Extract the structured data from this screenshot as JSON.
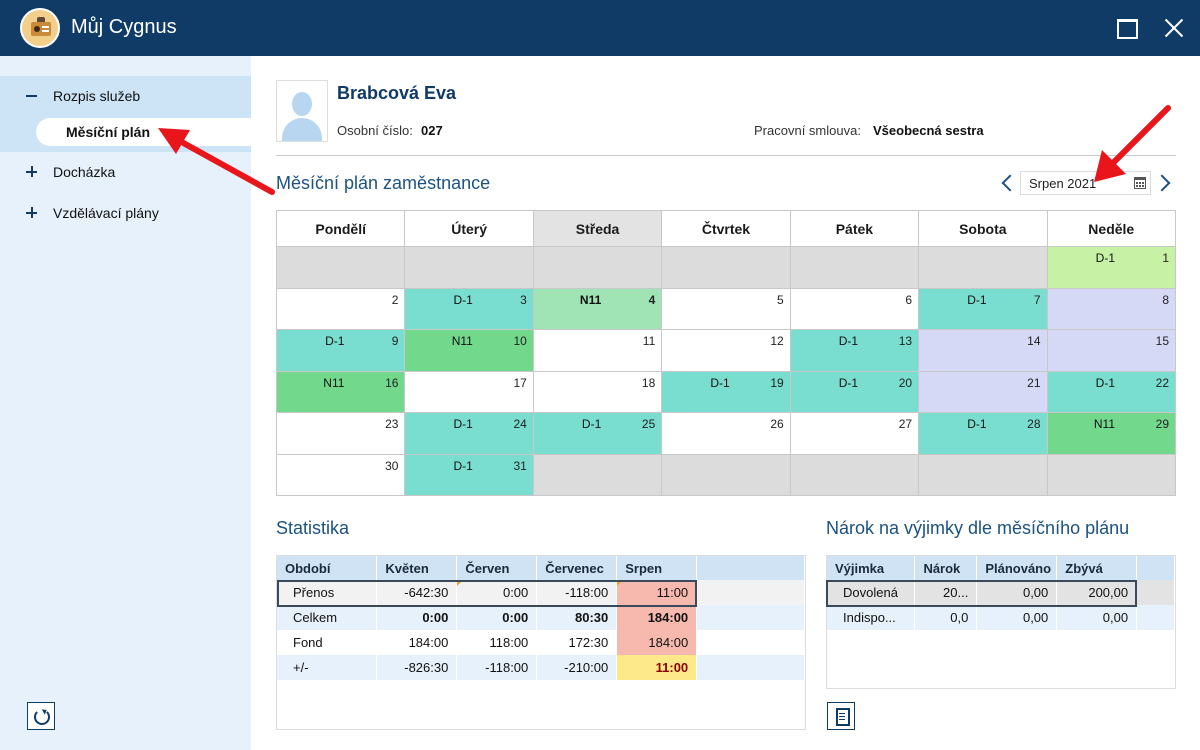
{
  "window": {
    "title": "Můj Cygnus",
    "logo": "id-badge-icon",
    "maximize": "maximize-icon",
    "close": "close-icon"
  },
  "sidebar": {
    "items": [
      {
        "label": "Rozpis služeb",
        "sign": "−",
        "expanded": true,
        "sub": [
          {
            "label": "Měsíční plán",
            "selected": true
          }
        ]
      },
      {
        "label": "Docházka",
        "sign": "+"
      },
      {
        "label": "Vzdělávací plány",
        "sign": "+"
      }
    ],
    "refresh_icon": "refresh-icon"
  },
  "employee": {
    "name": "Brabcová Eva",
    "osc_label": "Osobní číslo:",
    "osc_value": "027",
    "contract_label": "Pracovní smlouva:",
    "contract_value": "Všeobecná sestra"
  },
  "plan": {
    "title": "Měsíční plán zaměstnance",
    "month": "Srpen 2021",
    "weekdays": [
      "Pondělí",
      "Úterý",
      "Středa",
      "Čtvrtek",
      "Pátek",
      "Sobota",
      "Neděle"
    ],
    "today_column": 2,
    "weeks": [
      [
        {
          "d": "",
          "t": "empty"
        },
        {
          "d": "",
          "t": "empty"
        },
        {
          "d": "",
          "t": "empty"
        },
        {
          "d": "",
          "t": "empty"
        },
        {
          "d": "",
          "t": "empty"
        },
        {
          "d": "",
          "t": "empty"
        },
        {
          "d": "1",
          "s": "D-1",
          "t": "d1lime"
        }
      ],
      [
        {
          "d": "2",
          "t": "w"
        },
        {
          "d": "3",
          "s": "D-1",
          "t": "d1"
        },
        {
          "d": "4",
          "s": "N11",
          "t": "n11t",
          "bold": true
        },
        {
          "d": "5",
          "t": "w"
        },
        {
          "d": "6",
          "t": "w"
        },
        {
          "d": "7",
          "s": "D-1",
          "t": "d1"
        },
        {
          "d": "8",
          "t": "lav"
        }
      ],
      [
        {
          "d": "9",
          "s": "D-1",
          "t": "d1"
        },
        {
          "d": "10",
          "s": "N11",
          "t": "n11"
        },
        {
          "d": "11",
          "t": "w"
        },
        {
          "d": "12",
          "t": "w"
        },
        {
          "d": "13",
          "s": "D-1",
          "t": "d1"
        },
        {
          "d": "14",
          "t": "lav"
        },
        {
          "d": "15",
          "t": "lav"
        }
      ],
      [
        {
          "d": "16",
          "s": "N11",
          "t": "n11"
        },
        {
          "d": "17",
          "t": "w"
        },
        {
          "d": "18",
          "t": "w"
        },
        {
          "d": "19",
          "s": "D-1",
          "t": "d1"
        },
        {
          "d": "20",
          "s": "D-1",
          "t": "d1"
        },
        {
          "d": "21",
          "t": "lav"
        },
        {
          "d": "22",
          "s": "D-1",
          "t": "d1"
        }
      ],
      [
        {
          "d": "23",
          "t": "w"
        },
        {
          "d": "24",
          "s": "D-1",
          "t": "d1"
        },
        {
          "d": "25",
          "s": "D-1",
          "t": "d1"
        },
        {
          "d": "26",
          "t": "w"
        },
        {
          "d": "27",
          "t": "w"
        },
        {
          "d": "28",
          "s": "D-1",
          "t": "d1"
        },
        {
          "d": "29",
          "s": "N11",
          "t": "n11"
        }
      ],
      [
        {
          "d": "30",
          "t": "w"
        },
        {
          "d": "31",
          "s": "D-1",
          "t": "d1"
        },
        {
          "d": "",
          "t": "empty"
        },
        {
          "d": "",
          "t": "empty"
        },
        {
          "d": "",
          "t": "empty"
        },
        {
          "d": "",
          "t": "empty"
        },
        {
          "d": "",
          "t": "empty"
        }
      ]
    ]
  },
  "stats": {
    "title": "Statistika",
    "headers": [
      "Období",
      "Květen",
      "Červen",
      "Červenec",
      "Srpen",
      ""
    ],
    "rows": [
      {
        "label": "Přenos",
        "values": [
          "-642:30",
          "0:00",
          "-118:00",
          "11:00"
        ],
        "bold": false,
        "cls": "first"
      },
      {
        "label": "Celkem",
        "values": [
          "0:00",
          "0:00",
          "80:30",
          "184:00"
        ],
        "bold": true,
        "cls": "alt"
      },
      {
        "label": "Fond",
        "values": [
          "184:00",
          "118:00",
          "172:30",
          "184:00"
        ],
        "bold": false,
        "cls": ""
      },
      {
        "label": "+/-",
        "values": [
          "-826:30",
          "-118:00",
          "-210:00",
          "11:00"
        ],
        "bold": false,
        "cls": "alt"
      }
    ]
  },
  "narok": {
    "title": "Nárok na výjimky dle měsíčního plánu",
    "headers": [
      "Výjimka",
      "Nárok",
      "Plánováno",
      "Zbývá",
      ""
    ],
    "rows": [
      {
        "label": "Dovolená",
        "values": [
          "20...",
          "0,00",
          "200,00"
        ],
        "cls": "first"
      },
      {
        "label": "Indispo...",
        "values": [
          "0,0",
          "0,00",
          "0,00"
        ],
        "cls": "alt"
      }
    ],
    "doc_icon": "document-icon"
  },
  "colors": {
    "titlebar": "#0f3b66",
    "d1": "#79ddd0",
    "n11": "#72d98c",
    "lavender": "#d5d9f6",
    "pink": "#f7b9ad",
    "yellow": "#fde88a",
    "annotation": "#e8151b"
  }
}
